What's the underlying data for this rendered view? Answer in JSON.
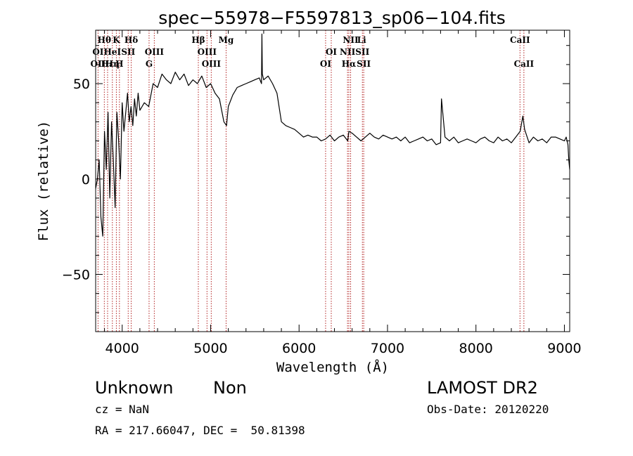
{
  "chart_data": {
    "type": "line",
    "title": "spec−55978−F5597813_sp06−104.fits",
    "xlabel": "Wavelength (Å)",
    "ylabel": "Flux (relative)",
    "xlim": [
      3700,
      9060
    ],
    "ylim": [
      -80,
      78
    ],
    "xticks": [
      4000,
      5000,
      6000,
      7000,
      8000,
      9000
    ],
    "yticks": [
      -50,
      0,
      50
    ],
    "ytick_labels": [
      "−50",
      "0",
      "50"
    ],
    "grid": false,
    "series": [
      {
        "x": [
          3700,
          3720,
          3740,
          3760,
          3780,
          3800,
          3820,
          3840,
          3860,
          3880,
          3900,
          3920,
          3940,
          3960,
          3980,
          4000,
          4020,
          4040,
          4060,
          4080,
          4100,
          4120,
          4140,
          4160,
          4180,
          4200,
          4250,
          4300,
          4350,
          4400,
          4450,
          4500,
          4550,
          4600,
          4650,
          4700,
          4750,
          4800,
          4850,
          4900,
          4950,
          5000,
          5050,
          5100,
          5150,
          5180,
          5200,
          5250,
          5300,
          5350,
          5400,
          5450,
          5500,
          5550,
          5575,
          5580,
          5585,
          5600,
          5650,
          5700,
          5750,
          5800,
          5850,
          5900,
          5950,
          6000,
          6050,
          6100,
          6150,
          6200,
          6250,
          6300,
          6350,
          6400,
          6450,
          6500,
          6550,
          6563,
          6600,
          6650,
          6700,
          6750,
          6800,
          6850,
          6900,
          6950,
          7000,
          7050,
          7100,
          7150,
          7200,
          7250,
          7300,
          7350,
          7400,
          7450,
          7500,
          7550,
          7600,
          7610,
          7650,
          7700,
          7750,
          7800,
          7850,
          7900,
          7950,
          8000,
          8050,
          8100,
          8150,
          8200,
          8250,
          8300,
          8350,
          8400,
          8450,
          8500,
          8530,
          8550,
          8600,
          8650,
          8700,
          8750,
          8800,
          8850,
          8900,
          8950,
          9000,
          9020,
          9040,
          9050,
          9060
        ],
        "y": [
          -5,
          0,
          10,
          -20,
          -30,
          25,
          5,
          35,
          -10,
          30,
          10,
          -15,
          35,
          20,
          0,
          40,
          25,
          35,
          45,
          30,
          38,
          28,
          42,
          33,
          45,
          36,
          40,
          38,
          50,
          48,
          55,
          52,
          50,
          56,
          52,
          55,
          49,
          52,
          50,
          54,
          48,
          50,
          45,
          42,
          30,
          28,
          38,
          44,
          48,
          49,
          50,
          51,
          52,
          53,
          50,
          76,
          55,
          52,
          54,
          50,
          45,
          30,
          28,
          27,
          26,
          24,
          22,
          23,
          22,
          22,
          20,
          21,
          23,
          20,
          22,
          23,
          20,
          25,
          24,
          22,
          20,
          22,
          24,
          22,
          21,
          23,
          22,
          21,
          22,
          20,
          22,
          19,
          20,
          21,
          22,
          20,
          21,
          18,
          19,
          42,
          22,
          20,
          22,
          19,
          20,
          21,
          20,
          19,
          21,
          22,
          20,
          19,
          22,
          20,
          21,
          19,
          22,
          25,
          33,
          26,
          19,
          22,
          20,
          21,
          19,
          22,
          22,
          21,
          20,
          22,
          18,
          10,
          5
        ]
      }
    ],
    "line_markers": [
      {
        "label": "Hθ",
        "x": 3798,
        "row": 1
      },
      {
        "label": "K",
        "x": 3934,
        "row": 1
      },
      {
        "label": "Hδ",
        "x": 4102,
        "row": 1
      },
      {
        "label": "Hβ",
        "x": 4861,
        "row": 1
      },
      {
        "label": "Mg",
        "x": 5175,
        "row": 1
      },
      {
        "label": "NII",
        "x": 6583,
        "row": 1
      },
      {
        "label": "Li",
        "x": 6708,
        "row": 1
      },
      {
        "label": "CaII",
        "x": 8498,
        "row": 1
      },
      {
        "label": "OI",
        "x": 3727,
        "row": 2
      },
      {
        "label": "HeI",
        "x": 3889,
        "row": 2
      },
      {
        "label": "SII",
        "x": 4068,
        "row": 2
      },
      {
        "label": "OIII",
        "x": 4363,
        "row": 2
      },
      {
        "label": "OIII",
        "x": 4959,
        "row": 2
      },
      {
        "label": "OI",
        "x": 6364,
        "row": 2
      },
      {
        "label": "NII",
        "x": 6548,
        "row": 2
      },
      {
        "label": "SII",
        "x": 6716,
        "row": 2
      },
      {
        "label": "OII",
        "x": 3727,
        "row": 3
      },
      {
        "label": "Hε",
        "x": 3835,
        "row": 3
      },
      {
        "label": "Hη",
        "x": 3889,
        "row": 3
      },
      {
        "label": "H",
        "x": 3969,
        "row": 3
      },
      {
        "label": "G",
        "x": 4304,
        "row": 3
      },
      {
        "label": "OIII",
        "x": 5007,
        "row": 3
      },
      {
        "label": "OI",
        "x": 6300,
        "row": 3
      },
      {
        "label": "Hα",
        "x": 6563,
        "row": 3
      },
      {
        "label": "SII",
        "x": 6731,
        "row": 3
      },
      {
        "label": "CaII",
        "x": 8542,
        "row": 3
      }
    ],
    "marker_lines_x": [
      3727,
      3798,
      3835,
      3889,
      3934,
      3969,
      4068,
      4102,
      4304,
      4363,
      4861,
      4959,
      5007,
      5175,
      6300,
      6364,
      6548,
      6563,
      6583,
      6716,
      6731,
      8498,
      8542
    ],
    "colors": {
      "line": "#000000",
      "markers": "#b22222"
    }
  },
  "info": {
    "class": "Unknown",
    "subclass": "Non",
    "cz": "cz = NaN",
    "coords": "RA = 217.66047, DEC =  50.81398",
    "survey": "LAMOST DR2",
    "obs_date": "Obs-Date: 20120220"
  }
}
